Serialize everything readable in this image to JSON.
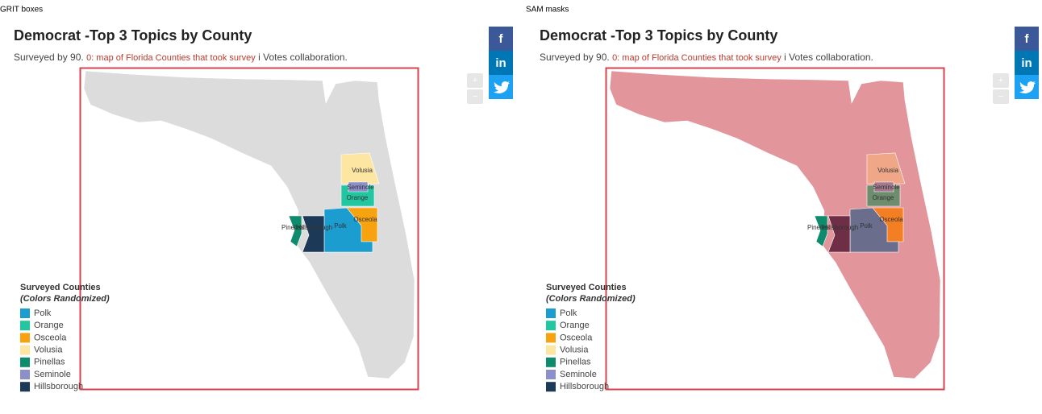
{
  "panels": [
    {
      "label": "GRIT boxes",
      "title": "Democrat -Top 3 Topics by County",
      "subtitle": {
        "prefix": "Surveyed by 90.",
        "link": "0: map of Florida Counties that took survey",
        "suffix": "i Votes collaboration."
      },
      "social": [
        "f",
        "in"
      ],
      "zoom": [
        "+",
        "−"
      ],
      "map_color": "#dcdcdc",
      "box_color": "#d9414f",
      "counties": [
        {
          "label": "Volusia",
          "color": "#fde5a2"
        },
        {
          "label": "Orange",
          "color": "#22c6a0"
        },
        {
          "label": "Seminole",
          "color": "#8b8fca"
        },
        {
          "label": "Osceola",
          "color": "#f7a20f"
        },
        {
          "label": "Polk",
          "color": "#1c9dd0"
        },
        {
          "label": "Hillsborough",
          "color": "#1c3a58"
        },
        {
          "label": "Pinellas",
          "color": "#0e8a6c"
        }
      ],
      "legend": {
        "title": "Surveyed Counties",
        "subtitle": "(Colors Randomized)",
        "items": [
          {
            "name": "Polk",
            "color": "#1c9dd0"
          },
          {
            "name": "Orange",
            "color": "#22c6a0"
          },
          {
            "name": "Osceola",
            "color": "#f7a20f"
          },
          {
            "name": "Volusia",
            "color": "#fde5a2"
          },
          {
            "name": "Pinellas",
            "color": "#0e8a6c"
          },
          {
            "name": "Seminole",
            "color": "#8b8fca"
          },
          {
            "name": "Hillsborough",
            "color": "#1c3a58"
          }
        ]
      }
    },
    {
      "label": "SAM masks",
      "title": "Democrat -Top 3 Topics by County",
      "subtitle": {
        "prefix": "Surveyed by 90.",
        "link": "0: map of Florida Counties that took survey",
        "suffix": "i Votes collaboration."
      },
      "social": [
        "f",
        "in"
      ],
      "zoom": [
        "+",
        "−"
      ],
      "map_color": "#e2969b",
      "box_color": "#d9414f",
      "counties": [
        {
          "label": "Volusia",
          "color": "#f0a788"
        },
        {
          "label": "Orange",
          "color": "#6e8c6e"
        },
        {
          "label": "Seminole",
          "color": "#a67a8e"
        },
        {
          "label": "Osceola",
          "color": "#f47f22"
        },
        {
          "label": "Polk",
          "color": "#6a6d8c"
        },
        {
          "label": "Hillsborough",
          "color": "#6e2e45"
        },
        {
          "label": "Pinellas",
          "color": "#0e8a6c"
        }
      ],
      "legend": {
        "title": "Surveyed Counties",
        "subtitle": "(Colors Randomized)",
        "items": [
          {
            "name": "Polk",
            "color": "#1c9dd0"
          },
          {
            "name": "Orange",
            "color": "#22c6a0"
          },
          {
            "name": "Osceola",
            "color": "#f7a20f"
          },
          {
            "name": "Volusia",
            "color": "#fde5a2"
          },
          {
            "name": "Pinellas",
            "color": "#0e8a6c"
          },
          {
            "name": "Seminole",
            "color": "#8b8fca"
          },
          {
            "name": "Hillsborough",
            "color": "#1c3a58"
          }
        ]
      }
    }
  ]
}
